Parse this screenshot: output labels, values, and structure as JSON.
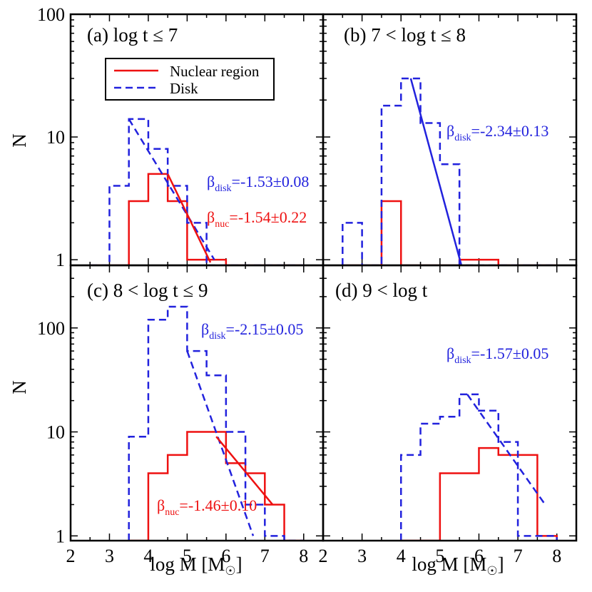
{
  "colors": {
    "nuclear": "#ee1111",
    "disk": "#2222dd",
    "axes": "#000000"
  },
  "shared": {
    "xlabel": "log M [M",
    "xlabel_sun": "☉",
    "xlabel_close": "]",
    "ylabel": "N",
    "x_tick_labels": [
      "2",
      "3",
      "4",
      "5",
      "6",
      "7",
      "8"
    ],
    "y_tick_labels_top": [
      "1",
      "10",
      "100"
    ],
    "y_tick_labels_bottom": [
      "1",
      "10",
      "100"
    ]
  },
  "legend": {
    "nuclear_label": "Nuclear region",
    "disk_label": "Disk"
  },
  "chart_data": [
    {
      "type": "histogram",
      "panel": "a",
      "title": "(a) log t ≤ 7",
      "xlim": [
        2,
        8.5
      ],
      "ylim": [
        0.9,
        100
      ],
      "yscale": "log",
      "bin_edges": [
        2.5,
        3,
        3.5,
        4,
        4.5,
        5,
        5.5,
        6,
        6.5,
        7,
        7.5,
        8
      ],
      "series": [
        {
          "name": "Nuclear region",
          "style": "solid",
          "values": [
            0,
            0,
            3,
            5,
            3,
            1,
            1,
            0,
            0,
            0,
            0
          ]
        },
        {
          "name": "Disk",
          "style": "dashed",
          "values": [
            0,
            4,
            14,
            8,
            4,
            2,
            0,
            0,
            0,
            0,
            0
          ]
        }
      ],
      "fits": [
        {
          "series": "Disk",
          "x": [
            3.5,
            5.7
          ],
          "y": [
            14,
            1.0
          ]
        },
        {
          "series": "Nuclear region",
          "x": [
            4.5,
            5.6
          ],
          "y": [
            5,
            0.95
          ]
        }
      ],
      "annotations": [
        {
          "series": "Disk",
          "symbol": "β",
          "sub": "disk",
          "text": "=-1.53±0.08"
        },
        {
          "series": "Nuclear region",
          "symbol": "β",
          "sub": "nuc",
          "text": "=-1.54±0.22"
        }
      ]
    },
    {
      "type": "histogram",
      "panel": "b",
      "title": "(b) 7 < log t ≤ 8",
      "xlim": [
        2,
        8.5
      ],
      "ylim": [
        0.9,
        100
      ],
      "yscale": "log",
      "bin_edges": [
        2.5,
        3,
        3.5,
        4,
        4.5,
        5,
        5.5,
        6,
        6.5,
        7,
        7.5,
        8
      ],
      "series": [
        {
          "name": "Nuclear region",
          "style": "solid",
          "values": [
            0,
            0,
            3,
            0,
            0,
            0,
            1,
            1,
            0,
            0,
            0
          ]
        },
        {
          "name": "Disk",
          "style": "dashed",
          "values": [
            2,
            0,
            18,
            30,
            13,
            6,
            0,
            0,
            0,
            0,
            0
          ]
        }
      ],
      "fits": [
        {
          "series": "Disk",
          "x": [
            4.25,
            5.55
          ],
          "y": [
            30,
            0.9
          ]
        }
      ],
      "annotations": [
        {
          "series": "Disk",
          "symbol": "β",
          "sub": "disk",
          "text": "=-2.34±0.13"
        }
      ]
    },
    {
      "type": "histogram",
      "panel": "c",
      "title": "(c) 8 < log t ≤ 9",
      "xlim": [
        2,
        8.5
      ],
      "ylim": [
        0.9,
        400
      ],
      "yscale": "log",
      "bin_edges": [
        3.5,
        4,
        4.5,
        5,
        5.5,
        6,
        6.5,
        7,
        7.5,
        8
      ],
      "series": [
        {
          "name": "Nuclear region",
          "style": "solid",
          "values": [
            0,
            4,
            6,
            10,
            10,
            5,
            4,
            2,
            0
          ]
        },
        {
          "name": "Disk",
          "style": "dashed",
          "values": [
            9,
            120,
            160,
            60,
            35,
            10,
            2,
            1,
            0
          ]
        }
      ],
      "fits": [
        {
          "series": "Disk",
          "x": [
            5.0,
            6.7
          ],
          "y": [
            60,
            1.0
          ]
        },
        {
          "series": "Nuclear region",
          "x": [
            5.75,
            7.2
          ],
          "y": [
            9,
            2
          ]
        }
      ],
      "annotations": [
        {
          "series": "Disk",
          "symbol": "β",
          "sub": "disk",
          "text": "=-2.15±0.05"
        },
        {
          "series": "Nuclear region",
          "symbol": "β",
          "sub": "nuc",
          "text": "=-1.46±0.10"
        }
      ]
    },
    {
      "type": "histogram",
      "panel": "d",
      "title": "(d) 9 < log t",
      "xlim": [
        2,
        8.5
      ],
      "ylim": [
        0.9,
        400
      ],
      "yscale": "log",
      "bin_edges": [
        4,
        4.5,
        5,
        5.5,
        6,
        6.5,
        7,
        7.5,
        8
      ],
      "series": [
        {
          "name": "Nuclear region",
          "style": "solid",
          "values": [
            0,
            0,
            4,
            4,
            7,
            6,
            6,
            1
          ]
        },
        {
          "name": "Disk",
          "style": "dashed",
          "values": [
            6,
            12,
            14,
            23,
            16,
            8,
            1,
            1
          ]
        }
      ],
      "fits": [
        {
          "series": "Disk",
          "x": [
            5.7,
            7.7
          ],
          "y": [
            23,
            2
          ]
        }
      ],
      "annotations": [
        {
          "series": "Disk",
          "symbol": "β",
          "sub": "disk",
          "text": "=-1.57±0.05"
        }
      ]
    }
  ]
}
